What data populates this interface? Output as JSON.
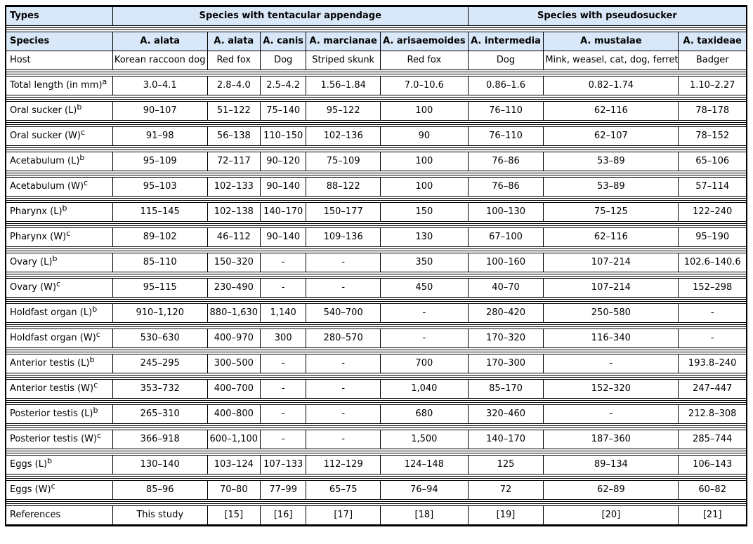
{
  "colors": {
    "header_bg": "#d9e8f8",
    "border": "#000000",
    "row_bg": "#ffffff"
  },
  "header": {
    "types_label": "Types",
    "group_tentacular": "Species with tentacular appendage",
    "group_pseudosucker": "Species with pseudosucker",
    "species_label": "Species",
    "host_label": "Host",
    "species": [
      "A. alata",
      "A. alata",
      "A. canis",
      "A. marcianae",
      "A. arisaemoides",
      "A. intermedia",
      "A. mustalae",
      "A. taxideae"
    ],
    "hosts": [
      "Korean raccoon dog",
      "Red fox",
      "Dog",
      "Striped skunk",
      "Red fox",
      "Dog",
      "Mink, weasel, cat, dog, ferret",
      "Badger"
    ]
  },
  "rows": [
    {
      "label": "Total length (in mm)",
      "sup": "a",
      "values": [
        "3.0–4.1",
        "2.8–4.0",
        "2.5–4.2",
        "1.56–1.84",
        "7.0–10.6",
        "0.86–1.6",
        "0.82–1.74",
        "1.10–2.27"
      ]
    },
    {
      "label": "Oral sucker (L)",
      "sup": "b",
      "values": [
        "90–107",
        "51–122",
        "75–140",
        "95–122",
        "100",
        "76–110",
        "62–116",
        "78–178"
      ]
    },
    {
      "label": "Oral sucker (W)",
      "sup": "c",
      "values": [
        "91–98",
        "56–138",
        "110–150",
        "102–136",
        "90",
        "76–110",
        "62–107",
        "78–152"
      ]
    },
    {
      "label": "Acetabulum (L)",
      "sup": "b",
      "values": [
        "95–109",
        "72–117",
        "90–120",
        "75–109",
        "100",
        "76–86",
        "53–89",
        "65–106"
      ]
    },
    {
      "label": "Acetabulum (W)",
      "sup": "c",
      "values": [
        "95–103",
        "102–133",
        "90–140",
        "88–122",
        "100",
        "76–86",
        "53–89",
        "57–114"
      ]
    },
    {
      "label": "Pharynx (L)",
      "sup": "b",
      "values": [
        "115–145",
        "102–138",
        "140–170",
        "150–177",
        "150",
        "100–130",
        "75–125",
        "122–240"
      ]
    },
    {
      "label": "Pharynx (W)",
      "sup": "c",
      "values": [
        "89–102",
        "46–112",
        "90–140",
        "109–136",
        "130",
        "67–100",
        "62–116",
        "95–190"
      ]
    },
    {
      "label": "Ovary (L)",
      "sup": "b",
      "values": [
        "85–110",
        "150–320",
        "-",
        "-",
        "350",
        "100–160",
        "107–214",
        "102.6–140.6"
      ]
    },
    {
      "label": "Ovary (W)",
      "sup": "c",
      "values": [
        "95–115",
        "230–490",
        "-",
        "-",
        "450",
        "40–70",
        "107–214",
        "152–298"
      ]
    },
    {
      "label": "Holdfast organ (L)",
      "sup": "b",
      "values": [
        "910–1,120",
        "880–1,630",
        "1,140",
        "540–700",
        "-",
        "280–420",
        "250–580",
        "-"
      ]
    },
    {
      "label": "Holdfast organ (W)",
      "sup": "c",
      "values": [
        "530–630",
        "400–970",
        "300",
        "280–570",
        "-",
        "170–320",
        "116–340",
        "-"
      ]
    },
    {
      "label": "Anterior testis (L)",
      "sup": "b",
      "values": [
        "245–295",
        "300–500",
        "-",
        "-",
        "700",
        "170–300",
        "-",
        "193.8–240"
      ]
    },
    {
      "label": "Anterior testis (W)",
      "sup": "c",
      "values": [
        "353–732",
        "400–700",
        "-",
        "-",
        "1,040",
        "85–170",
        "152–320",
        "247–447"
      ]
    },
    {
      "label": "Posterior testis (L)",
      "sup": "b",
      "values": [
        "265–310",
        "400–800",
        "-",
        "-",
        "680",
        "320–460",
        "-",
        "212.8–308"
      ]
    },
    {
      "label": "Posterior testis (W)",
      "sup": "c",
      "values": [
        "366–918",
        "600–1,100",
        "-",
        "-",
        "1,500",
        "140–170",
        "187–360",
        "285–744"
      ]
    },
    {
      "label": "Eggs (L)",
      "sup": "b",
      "values": [
        "130–140",
        "103–124",
        "107–133",
        "112–129",
        "124–148",
        "125",
        "89–134",
        "106–143"
      ]
    },
    {
      "label": "Eggs (W)",
      "sup": "c",
      "values": [
        "85–96",
        "70–80",
        "77–99",
        "65–75",
        "76–94",
        "72",
        "62–89",
        "60–82"
      ]
    },
    {
      "label": "References",
      "sup": "",
      "values": [
        "This study",
        "[15]",
        "[16]",
        "[17]",
        "[18]",
        "[19]",
        "[20]",
        "[21]"
      ]
    }
  ]
}
